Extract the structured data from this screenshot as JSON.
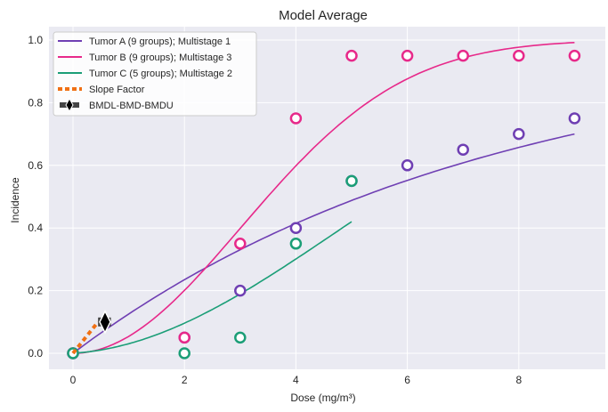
{
  "chart_data": {
    "type": "scatter",
    "title": "Model Average",
    "xlabel": "Dose (mg/m³)",
    "ylabel": "Incidence",
    "xlim": [
      -0.43,
      9.55
    ],
    "ylim": [
      -0.05,
      1.043
    ],
    "xticks": [
      0,
      2,
      4,
      6,
      8
    ],
    "yticks": [
      "0.0",
      "0.2",
      "0.4",
      "0.6",
      "0.8",
      "1.0"
    ],
    "grid": true,
    "legend_position": "top-left",
    "series": [
      {
        "name": "Tumor A (9 groups); Multistage 1",
        "color": "#6f3fb3",
        "x": [
          0,
          2,
          3,
          4,
          5,
          6,
          7,
          8,
          9
        ],
        "y": [
          0,
          0.05,
          0.2,
          0.4,
          0.55,
          0.6,
          0.65,
          0.7,
          0.75
        ],
        "curve": {
          "model": "multistage",
          "coefficients": [
            0.1338
          ],
          "x_range": [
            0,
            9
          ]
        }
      },
      {
        "name": "Tumor B (9 groups); Multistage 3",
        "color": "#e7298a",
        "x": [
          0,
          2,
          3,
          4,
          5,
          6,
          7,
          8,
          9
        ],
        "y": [
          0,
          0.05,
          0.35,
          0.75,
          0.95,
          0.95,
          0.95,
          0.95,
          0.95
        ],
        "curve": {
          "model": "multistage",
          "coefficients": [
            0,
            0.055,
            0.0005
          ],
          "x_range": [
            0,
            9
          ]
        }
      },
      {
        "name": "Tumor C (5 groups); Multistage 2",
        "color": "#1b9e77",
        "x": [
          0,
          2,
          3,
          4,
          5
        ],
        "y": [
          0,
          0,
          0.05,
          0.35,
          0.55
        ],
        "curve": {
          "model": "multistage",
          "coefficients": [
            0.0115,
            0.0195
          ],
          "x_range": [
            0,
            5
          ]
        }
      }
    ],
    "slope_factor": {
      "name": "Slope Factor",
      "color": "#f07014",
      "x": [
        0,
        0.45
      ],
      "y": [
        0,
        0.1
      ]
    },
    "bmd": {
      "name": "BMDL-BMD-BMDU",
      "bmdl": 0.45,
      "bmd": 0.575,
      "bmdu": 0.68,
      "response": 0.1
    }
  }
}
